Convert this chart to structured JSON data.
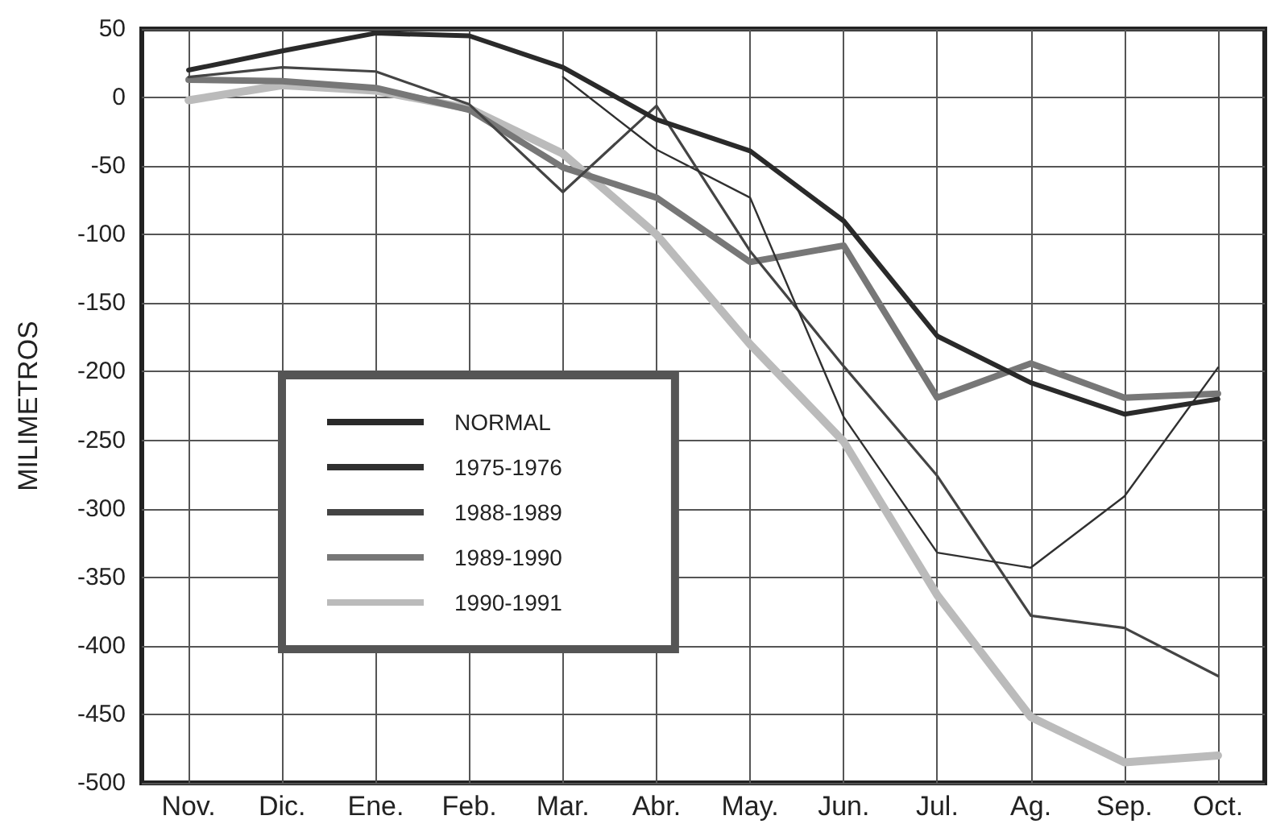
{
  "chart_data": {
    "type": "line",
    "ylabel": "MILIMETROS",
    "categories": [
      "Nov.",
      "Dic.",
      "Ene.",
      "Feb.",
      "Mar.",
      "Abr.",
      "May.",
      "Jun.",
      "Jul.",
      "Ag.",
      "Sep.",
      "Oct."
    ],
    "series": [
      {
        "name": "NORMAL",
        "color": "#2a2a2a",
        "values": [
          20,
          34,
          47,
          45,
          22,
          -16,
          -39,
          -90,
          -174,
          -208,
          -231,
          -220
        ]
      },
      {
        "name": "1975-1976",
        "color": "#303030",
        "values": [
          null,
          null,
          null,
          null,
          15,
          -38,
          -73,
          -233,
          -332,
          -343,
          -291,
          -197
        ]
      },
      {
        "name": "1988-1989",
        "color": "#444444",
        "values": [
          15,
          22,
          19,
          -5,
          -69,
          -6,
          -112,
          -196,
          -276,
          -378,
          -387,
          -422
        ]
      },
      {
        "name": "1989-1990",
        "color": "#777777",
        "values": [
          13,
          12,
          7,
          -9,
          -51,
          -73,
          -120,
          -108,
          -219,
          -194,
          -219,
          -216
        ]
      },
      {
        "name": "1990-1991",
        "color": "#bbbbbb",
        "values": [
          -2,
          9,
          5,
          -8,
          -41,
          -100,
          -180,
          -251,
          -363,
          -452,
          -485,
          -480
        ]
      }
    ],
    "ylim": [
      -500,
      50
    ],
    "yticks": [
      -500,
      -450,
      -400,
      -350,
      -300,
      -250,
      -200,
      -150,
      -100,
      -50,
      0,
      50
    ],
    "grid": true,
    "legend": "left",
    "marker": "none",
    "line_style": "solid"
  }
}
